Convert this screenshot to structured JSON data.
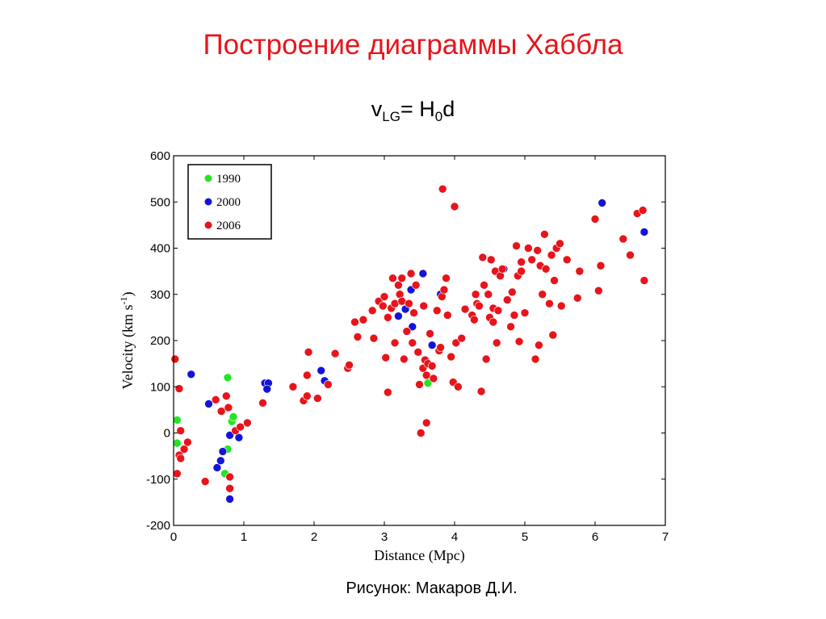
{
  "title": "Построение диаграммы Хаббла",
  "formula": {
    "v": "v",
    "v_sub": "LG",
    "eq": "= H",
    "h_sub": "0",
    "d": "d"
  },
  "caption": "Рисунок: Макаров Д.И.",
  "chart_data": {
    "type": "scatter",
    "xlabel": "Distance (Mpc)",
    "ylabel": "Velocity (km s",
    "ylabel_sup": "-1",
    "ylabel_close": ")",
    "xlim": [
      0,
      7
    ],
    "ylim": [
      -200,
      600
    ],
    "x_ticks": [
      0,
      1,
      2,
      3,
      4,
      5,
      6,
      7
    ],
    "y_ticks": [
      -200,
      -100,
      0,
      100,
      200,
      300,
      400,
      500,
      600
    ],
    "grid": false,
    "legend_position": "top-left",
    "series": [
      {
        "name": "1990",
        "color": "#22e622",
        "points": [
          [
            0.05,
            28
          ],
          [
            0.05,
            -22
          ],
          [
            0.77,
            120
          ],
          [
            0.83,
            25
          ],
          [
            0.85,
            35
          ],
          [
            0.77,
            -35
          ],
          [
            0.73,
            -88
          ],
          [
            3.62,
            108
          ]
        ]
      },
      {
        "name": "2000",
        "color": "#1414d8",
        "points": [
          [
            0.25,
            127
          ],
          [
            0.5,
            63
          ],
          [
            0.62,
            -75
          ],
          [
            0.67,
            -60
          ],
          [
            0.7,
            -40
          ],
          [
            0.8,
            -5
          ],
          [
            0.93,
            -10
          ],
          [
            0.8,
            -143
          ],
          [
            1.3,
            108
          ],
          [
            1.35,
            108
          ],
          [
            1.33,
            95
          ],
          [
            2.1,
            135
          ],
          [
            2.15,
            113
          ],
          [
            3.2,
            253
          ],
          [
            3.3,
            268
          ],
          [
            3.4,
            230
          ],
          [
            3.38,
            310
          ],
          [
            3.55,
            345
          ],
          [
            3.8,
            300
          ],
          [
            3.68,
            190
          ],
          [
            4.7,
            355
          ],
          [
            6.1,
            498
          ],
          [
            6.7,
            435
          ]
        ]
      },
      {
        "name": "2006",
        "color": "#e8141b",
        "points": [
          [
            0.02,
            160
          ],
          [
            0.08,
            96
          ],
          [
            0.05,
            -88
          ],
          [
            0.1,
            5
          ],
          [
            0.08,
            -48
          ],
          [
            0.1,
            -55
          ],
          [
            0.15,
            -35
          ],
          [
            0.2,
            -20
          ],
          [
            0.45,
            -105
          ],
          [
            0.6,
            72
          ],
          [
            0.68,
            47
          ],
          [
            0.75,
            80
          ],
          [
            0.78,
            55
          ],
          [
            0.8,
            -95
          ],
          [
            0.8,
            -120
          ],
          [
            0.88,
            5
          ],
          [
            0.95,
            13
          ],
          [
            1.05,
            22
          ],
          [
            1.27,
            65
          ],
          [
            1.7,
            100
          ],
          [
            1.85,
            70
          ],
          [
            1.9,
            80
          ],
          [
            1.9,
            125
          ],
          [
            1.92,
            175
          ],
          [
            2.05,
            75
          ],
          [
            2.2,
            105
          ],
          [
            2.3,
            172
          ],
          [
            2.48,
            140
          ],
          [
            2.5,
            147
          ],
          [
            2.58,
            240
          ],
          [
            2.62,
            208
          ],
          [
            2.7,
            245
          ],
          [
            2.83,
            265
          ],
          [
            2.85,
            205
          ],
          [
            2.92,
            285
          ],
          [
            2.98,
            275
          ],
          [
            3.0,
            295
          ],
          [
            3.02,
            163
          ],
          [
            3.05,
            250
          ],
          [
            3.05,
            88
          ],
          [
            3.1,
            270
          ],
          [
            3.12,
            335
          ],
          [
            3.15,
            280
          ],
          [
            3.15,
            195
          ],
          [
            3.2,
            320
          ],
          [
            3.22,
            300
          ],
          [
            3.25,
            335
          ],
          [
            3.25,
            285
          ],
          [
            3.28,
            160
          ],
          [
            3.32,
            220
          ],
          [
            3.35,
            280
          ],
          [
            3.38,
            345
          ],
          [
            3.4,
            195
          ],
          [
            3.42,
            260
          ],
          [
            3.45,
            320
          ],
          [
            3.48,
            175
          ],
          [
            3.5,
            105
          ],
          [
            3.52,
            0
          ],
          [
            3.55,
            140
          ],
          [
            3.56,
            275
          ],
          [
            3.58,
            158
          ],
          [
            3.6,
            22
          ],
          [
            3.6,
            125
          ],
          [
            3.62,
            150
          ],
          [
            3.65,
            215
          ],
          [
            3.68,
            145
          ],
          [
            3.7,
            118
          ],
          [
            3.75,
            265
          ],
          [
            3.78,
            178
          ],
          [
            3.8,
            185
          ],
          [
            3.82,
            295
          ],
          [
            3.83,
            528
          ],
          [
            3.85,
            310
          ],
          [
            3.88,
            335
          ],
          [
            3.9,
            255
          ],
          [
            3.95,
            165
          ],
          [
            3.98,
            110
          ],
          [
            4.0,
            490
          ],
          [
            4.02,
            195
          ],
          [
            4.05,
            100
          ],
          [
            4.1,
            205
          ],
          [
            4.15,
            268
          ],
          [
            4.25,
            255
          ],
          [
            4.28,
            245
          ],
          [
            4.3,
            300
          ],
          [
            4.32,
            280
          ],
          [
            4.35,
            275
          ],
          [
            4.38,
            90
          ],
          [
            4.4,
            380
          ],
          [
            4.42,
            320
          ],
          [
            4.45,
            160
          ],
          [
            4.48,
            300
          ],
          [
            4.5,
            250
          ],
          [
            4.52,
            375
          ],
          [
            4.55,
            240
          ],
          [
            4.55,
            270
          ],
          [
            4.58,
            350
          ],
          [
            4.6,
            195
          ],
          [
            4.62,
            265
          ],
          [
            4.65,
            340
          ],
          [
            4.68,
            355
          ],
          [
            4.75,
            288
          ],
          [
            4.8,
            230
          ],
          [
            4.82,
            305
          ],
          [
            4.85,
            255
          ],
          [
            4.88,
            405
          ],
          [
            4.9,
            340
          ],
          [
            4.92,
            198
          ],
          [
            4.95,
            350
          ],
          [
            4.95,
            370
          ],
          [
            5.0,
            260
          ],
          [
            5.05,
            400
          ],
          [
            5.1,
            375
          ],
          [
            5.15,
            160
          ],
          [
            5.18,
            395
          ],
          [
            5.2,
            190
          ],
          [
            5.22,
            362
          ],
          [
            5.25,
            300
          ],
          [
            5.28,
            430
          ],
          [
            5.3,
            355
          ],
          [
            5.35,
            280
          ],
          [
            5.38,
            385
          ],
          [
            5.4,
            212
          ],
          [
            5.42,
            330
          ],
          [
            5.45,
            400
          ],
          [
            5.5,
            410
          ],
          [
            5.52,
            275
          ],
          [
            5.6,
            375
          ],
          [
            5.75,
            292
          ],
          [
            5.78,
            350
          ],
          [
            6.0,
            463
          ],
          [
            6.05,
            308
          ],
          [
            6.08,
            362
          ],
          [
            6.4,
            420
          ],
          [
            6.5,
            385
          ],
          [
            6.6,
            475
          ],
          [
            6.68,
            482
          ],
          [
            6.7,
            330
          ]
        ]
      }
    ]
  }
}
